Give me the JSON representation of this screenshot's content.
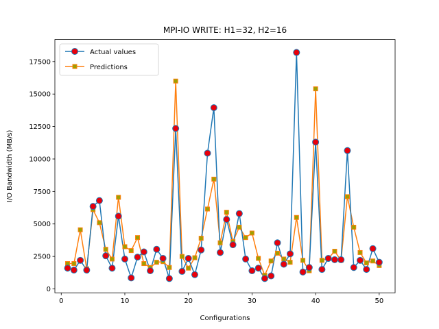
{
  "chart_data": {
    "type": "line",
    "title": "MPI-IO WRITE: H1=32, H2=16",
    "xlabel": "Configurations",
    "ylabel": "I/O Bandwidth (MB/s)",
    "xlim": [
      -1,
      52.5
    ],
    "ylim": [
      -300,
      19200
    ],
    "xticks": [
      0,
      10,
      20,
      30,
      40,
      50
    ],
    "yticks": [
      0,
      2500,
      5000,
      7500,
      10000,
      12500,
      15000,
      17500
    ],
    "grid": false,
    "legend_position": "top-left",
    "x": [
      1,
      2,
      3,
      4,
      5,
      6,
      7,
      8,
      9,
      10,
      11,
      12,
      13,
      14,
      15,
      16,
      17,
      18,
      19,
      20,
      21,
      22,
      23,
      24,
      25,
      26,
      27,
      28,
      29,
      30,
      31,
      32,
      33,
      34,
      35,
      36,
      37,
      38,
      39,
      40,
      41,
      42,
      43,
      44,
      45,
      46,
      47,
      48,
      49,
      50
    ],
    "series": [
      {
        "name": "Actual values",
        "color": "#1f77b4",
        "marker": "circle",
        "marker_face": "#e8000b",
        "values": [
          1600,
          1450,
          2200,
          1450,
          6350,
          6800,
          2550,
          1600,
          5600,
          2300,
          850,
          2450,
          2850,
          1400,
          3050,
          2350,
          800,
          12350,
          1350,
          2350,
          1100,
          3000,
          10450,
          13950,
          2800,
          5350,
          3400,
          5800,
          2300,
          1400,
          1600,
          800,
          1000,
          3550,
          1900,
          2700,
          18200,
          1300,
          1650,
          11300,
          1500,
          2350,
          2250,
          2250,
          10650,
          1650,
          2200,
          1500,
          3100,
          2050
        ]
      },
      {
        "name": "Predictions",
        "color": "#ff7f0e",
        "marker": "square",
        "marker_face": "#a0a000",
        "values": [
          1950,
          1950,
          4550,
          1550,
          6100,
          5100,
          3050,
          2300,
          7050,
          3250,
          2950,
          3950,
          1950,
          1650,
          2050,
          2100,
          1650,
          16000,
          2500,
          1600,
          2400,
          3900,
          6150,
          8450,
          3550,
          5900,
          3650,
          4750,
          3950,
          4300,
          2350,
          1050,
          2150,
          2750,
          2300,
          2050,
          5500,
          2200,
          1400,
          15400,
          2200,
          2350,
          2900,
          2200,
          7100,
          4750,
          2800,
          2000,
          2150,
          1800
        ]
      }
    ]
  }
}
